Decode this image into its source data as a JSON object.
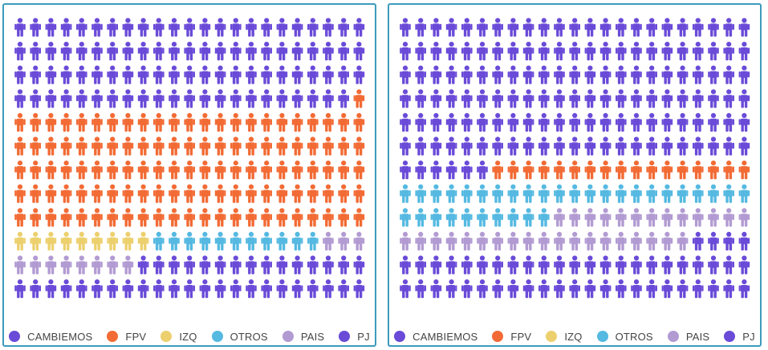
{
  "colors": {
    "CAMBIEMOS": "#6a4bd8",
    "FPV": "#f26b35",
    "IZQ": "#ecd06e",
    "OTROS": "#55b9e1",
    "PAIS": "#b29bd2",
    "PJ": "#6a4bd8"
  },
  "chart_data": [
    {
      "type": "waffle-pictogram",
      "columns": 23,
      "rows": 12,
      "series": [
        {
          "name": "CAMBIEMOS",
          "values": [
            91
          ]
        },
        {
          "name": "FPV",
          "values": [
            116
          ]
        },
        {
          "name": "IZQ",
          "values": [
            9
          ]
        },
        {
          "name": "OTROS",
          "values": [
            11
          ]
        },
        {
          "name": "PAIS",
          "values": [
            11
          ]
        },
        {
          "name": "PJ",
          "values": [
            38
          ]
        }
      ],
      "legend": [
        {
          "label": "CAMBIEMOS"
        },
        {
          "label": "FPV"
        },
        {
          "label": "IZQ"
        },
        {
          "label": "OTROS"
        },
        {
          "label": "PAIS"
        },
        {
          "label": "PJ"
        }
      ]
    },
    {
      "type": "waffle-pictogram",
      "columns": 23,
      "rows": 12,
      "series": [
        {
          "name": "CAMBIEMOS",
          "values": [
            144
          ]
        },
        {
          "name": "FPV",
          "values": [
            17
          ]
        },
        {
          "name": "IZQ",
          "values": [
            0
          ]
        },
        {
          "name": "OTROS",
          "values": [
            33
          ]
        },
        {
          "name": "PAIS",
          "values": [
            32
          ]
        },
        {
          "name": "PJ",
          "values": [
            50
          ]
        }
      ],
      "legend": [
        {
          "label": "CAMBIEMOS"
        },
        {
          "label": "FPV"
        },
        {
          "label": "IZQ"
        },
        {
          "label": "OTROS"
        },
        {
          "label": "PAIS"
        },
        {
          "label": "PJ"
        }
      ]
    }
  ]
}
